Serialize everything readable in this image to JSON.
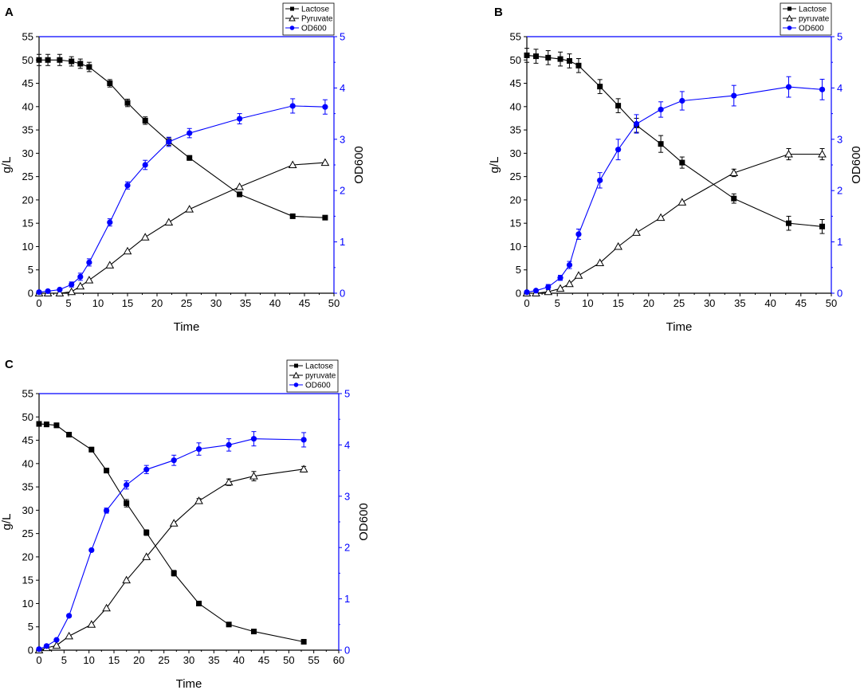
{
  "chart_data": [
    {
      "type": "line",
      "panel": "A",
      "xlabel": "Time",
      "ylabel": "g/L",
      "y2label": "OD600",
      "xlim": [
        0,
        50
      ],
      "ylim": [
        0,
        55
      ],
      "y2lim": [
        0,
        5
      ],
      "xticks": [
        0,
        5,
        10,
        15,
        20,
        25,
        30,
        35,
        40,
        45,
        50
      ],
      "yticks": [
        0,
        5,
        10,
        15,
        20,
        25,
        30,
        35,
        40,
        45,
        50,
        55
      ],
      "y2ticks": [
        0,
        1,
        2,
        3,
        4,
        5
      ],
      "legend_position": "top-right",
      "series": [
        {
          "name": "Lactose",
          "axis": "left",
          "marker": "square",
          "color": "#000000",
          "x": [
            0,
            1.5,
            3.5,
            5.5,
            7,
            8.5,
            12,
            15,
            18,
            22,
            25.5,
            34,
            43,
            48.5
          ],
          "y": [
            50,
            50,
            50,
            49.7,
            49.2,
            48.5,
            45,
            40.8,
            37,
            32.5,
            29,
            21.2,
            16.5,
            16.2
          ],
          "err": [
            1.2,
            1.2,
            1.2,
            1.0,
            1.0,
            1.0,
            0.8,
            0.8,
            0.8,
            0.8,
            0.5,
            0.5,
            0.4,
            0.4
          ]
        },
        {
          "name": "Pyruvate",
          "axis": "left",
          "marker": "triangle-open",
          "color": "#000000",
          "x": [
            0,
            1.5,
            3.5,
            5.5,
            7,
            8.5,
            12,
            15,
            18,
            22,
            25.5,
            34,
            43,
            48.5
          ],
          "y": [
            0,
            0,
            0,
            0.3,
            1.5,
            2.8,
            6,
            9,
            12,
            15.2,
            18,
            22.8,
            27.5,
            28
          ],
          "err": [
            0,
            0,
            0,
            0,
            0,
            0,
            0,
            0,
            0,
            0,
            0,
            0,
            0,
            0
          ]
        },
        {
          "name": "OD600",
          "axis": "right",
          "marker": "circle",
          "color": "#0000ff",
          "x": [
            0,
            1.5,
            3.5,
            5.5,
            7,
            8.5,
            12,
            15,
            18,
            22,
            25.5,
            34,
            43,
            48.5
          ],
          "y": [
            0.02,
            0.04,
            0.07,
            0.17,
            0.32,
            0.6,
            1.38,
            2.1,
            2.5,
            2.95,
            3.12,
            3.4,
            3.65,
            3.63
          ],
          "err": [
            0,
            0,
            0,
            0.05,
            0.07,
            0.07,
            0.07,
            0.07,
            0.09,
            0.09,
            0.09,
            0.1,
            0.14,
            0.14
          ]
        }
      ]
    },
    {
      "type": "line",
      "panel": "B",
      "xlabel": "Time",
      "ylabel": "g/L",
      "y2label": "OD600",
      "xlim": [
        0,
        50
      ],
      "ylim": [
        0,
        55
      ],
      "y2lim": [
        0,
        5
      ],
      "xticks": [
        0,
        5,
        10,
        15,
        20,
        25,
        30,
        35,
        40,
        45,
        50
      ],
      "yticks": [
        0,
        5,
        10,
        15,
        20,
        25,
        30,
        35,
        40,
        45,
        50,
        55
      ],
      "y2ticks": [
        0,
        1,
        2,
        3,
        4,
        5
      ],
      "legend_position": "top-right",
      "series": [
        {
          "name": "Lactose",
          "axis": "left",
          "marker": "square",
          "color": "#000000",
          "x": [
            0,
            1.5,
            3.5,
            5.5,
            7,
            8.5,
            12,
            15,
            18,
            22,
            25.5,
            34,
            43,
            48.5
          ],
          "y": [
            51,
            50.8,
            50.5,
            50.2,
            49.8,
            48.8,
            44.3,
            40.2,
            36,
            32,
            28,
            20.3,
            15,
            14.3
          ],
          "err": [
            1.5,
            1.5,
            1.5,
            1.5,
            1.5,
            1.5,
            1.5,
            1.5,
            1.5,
            1.8,
            1.2,
            1.0,
            1.5,
            1.5
          ]
        },
        {
          "name": "pyruvate",
          "axis": "left",
          "marker": "triangle-open",
          "color": "#000000",
          "x": [
            0,
            1.5,
            3.5,
            5.5,
            7,
            8.5,
            12,
            15,
            18,
            22,
            25.5,
            34,
            43,
            48.5
          ],
          "y": [
            0,
            0,
            0.3,
            1,
            2,
            3.8,
            6.5,
            10,
            13,
            16.2,
            19.5,
            25.8,
            29.8,
            29.8
          ],
          "err": [
            0,
            0,
            0,
            0,
            0,
            0,
            0,
            0,
            0,
            0,
            0,
            0.8,
            1.2,
            1.2
          ]
        },
        {
          "name": "OD600",
          "axis": "right",
          "marker": "circle",
          "color": "#0000ff",
          "x": [
            0,
            1.5,
            3.5,
            5.5,
            7,
            8.5,
            12,
            15,
            18,
            22,
            25.5,
            34,
            43,
            48.5
          ],
          "y": [
            0.02,
            0.05,
            0.12,
            0.3,
            0.55,
            1.15,
            2.2,
            2.8,
            3.3,
            3.58,
            3.75,
            3.85,
            4.02,
            3.97
          ],
          "err": [
            0,
            0,
            0.05,
            0.05,
            0.07,
            0.1,
            0.15,
            0.2,
            0.18,
            0.15,
            0.18,
            0.2,
            0.2,
            0.2
          ]
        }
      ]
    },
    {
      "type": "line",
      "panel": "C",
      "xlabel": "Time",
      "ylabel": "g/L",
      "y2label": "OD600",
      "xlim": [
        0,
        60
      ],
      "ylim": [
        0,
        55
      ],
      "y2lim": [
        0,
        5
      ],
      "xticks": [
        0,
        5,
        10,
        15,
        20,
        25,
        30,
        35,
        40,
        45,
        50,
        55,
        60
      ],
      "yticks": [
        0,
        5,
        10,
        15,
        20,
        25,
        30,
        35,
        40,
        45,
        50,
        55
      ],
      "y2ticks": [
        0,
        1,
        2,
        3,
        4,
        5
      ],
      "legend_position": "top-right",
      "series": [
        {
          "name": "Lactose",
          "axis": "left",
          "marker": "square",
          "color": "#000000",
          "x": [
            0,
            1.5,
            3.5,
            6,
            10.5,
            13.5,
            17.5,
            21.5,
            27,
            32,
            38,
            43,
            53
          ],
          "y": [
            48.5,
            48.4,
            48.2,
            46.2,
            43,
            38.5,
            31.5,
            25.2,
            16.5,
            10,
            5.5,
            4,
            1.8
          ],
          "err": [
            0.5,
            0.5,
            0.5,
            0.5,
            0.5,
            0.5,
            0.8,
            0.6,
            0.6,
            0.3,
            0.3,
            0.2,
            0.2
          ]
        },
        {
          "name": "pyruvate",
          "axis": "left",
          "marker": "triangle-open",
          "color": "#000000",
          "x": [
            0,
            1.5,
            3.5,
            6,
            10.5,
            13.5,
            17.5,
            21.5,
            27,
            32,
            38,
            43,
            53
          ],
          "y": [
            0,
            0.5,
            1,
            3,
            5.5,
            9,
            15,
            20,
            27.2,
            32,
            36,
            37.3,
            38.8
          ],
          "err": [
            0,
            0,
            0,
            0,
            0,
            0,
            0,
            0,
            0,
            0.5,
            0.7,
            1.0,
            0.6
          ]
        },
        {
          "name": "OD600",
          "axis": "right",
          "marker": "circle",
          "color": "#0000ff",
          "x": [
            0,
            1.5,
            3.5,
            6,
            10.5,
            13.5,
            17.5,
            21.5,
            27,
            32,
            38,
            43,
            53
          ],
          "y": [
            0.02,
            0.08,
            0.2,
            0.67,
            1.95,
            2.72,
            3.22,
            3.52,
            3.7,
            3.92,
            4.0,
            4.12,
            4.1
          ],
          "err": [
            0,
            0,
            0,
            0,
            0,
            0.05,
            0.08,
            0.08,
            0.1,
            0.12,
            0.12,
            0.14,
            0.14
          ]
        }
      ]
    }
  ]
}
